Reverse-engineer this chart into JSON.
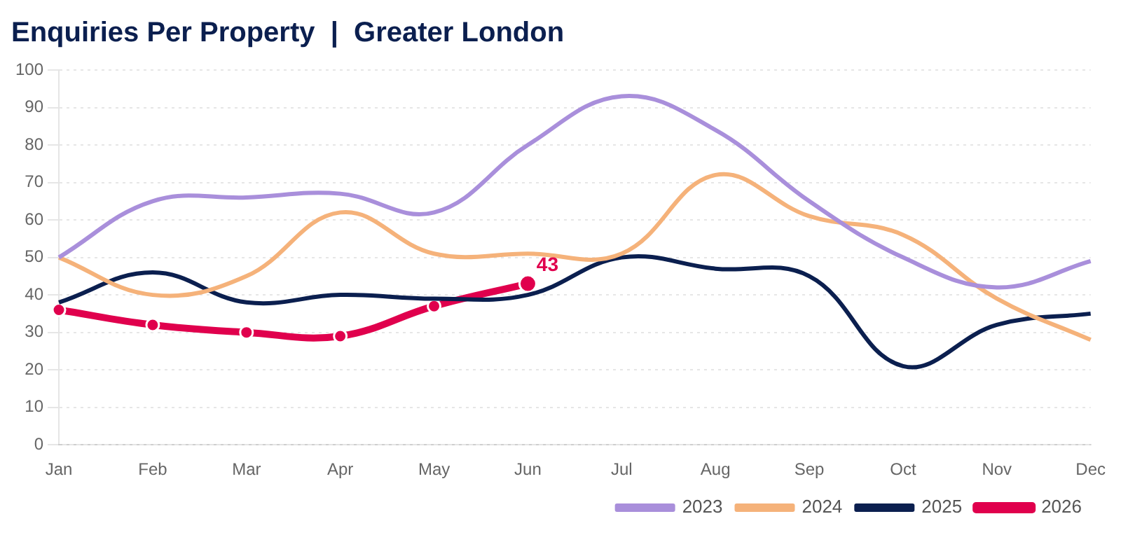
{
  "chart_data": {
    "type": "line",
    "title": "Enquiries Per Property  |  Greater London",
    "categories": [
      "Jan",
      "Feb",
      "Mar",
      "Apr",
      "May",
      "Jun",
      "Jul",
      "Aug",
      "Sep",
      "Oct",
      "Nov",
      "Dec"
    ],
    "ylim": [
      0,
      100
    ],
    "yticks": [
      0,
      10,
      20,
      30,
      40,
      50,
      60,
      70,
      80,
      90,
      100
    ],
    "grid": "y",
    "legend": "bottom right",
    "series": [
      {
        "name": "2023",
        "color": "#a98fdb",
        "marker": "none",
        "values": [
          50,
          65,
          66,
          67,
          62,
          80,
          93,
          84,
          65,
          50,
          42,
          49
        ]
      },
      {
        "name": "2024",
        "color": "#f5b27a",
        "marker": "none",
        "values": [
          50,
          40,
          45,
          62,
          51,
          51,
          51,
          72,
          61,
          56,
          39,
          28
        ]
      },
      {
        "name": "2025",
        "color": "#0b1f4f",
        "marker": "none",
        "values": [
          38,
          46,
          38,
          40,
          39,
          40,
          50,
          47,
          45,
          21,
          32,
          35
        ]
      },
      {
        "name": "2026",
        "color": "#e0004d",
        "marker": "circle",
        "values": [
          36,
          32,
          30,
          29,
          37,
          43,
          null,
          null,
          null,
          null,
          null,
          null
        ],
        "value_labels": [
          null,
          null,
          null,
          null,
          null,
          "43",
          null,
          null,
          null,
          null,
          null,
          null
        ]
      }
    ]
  }
}
